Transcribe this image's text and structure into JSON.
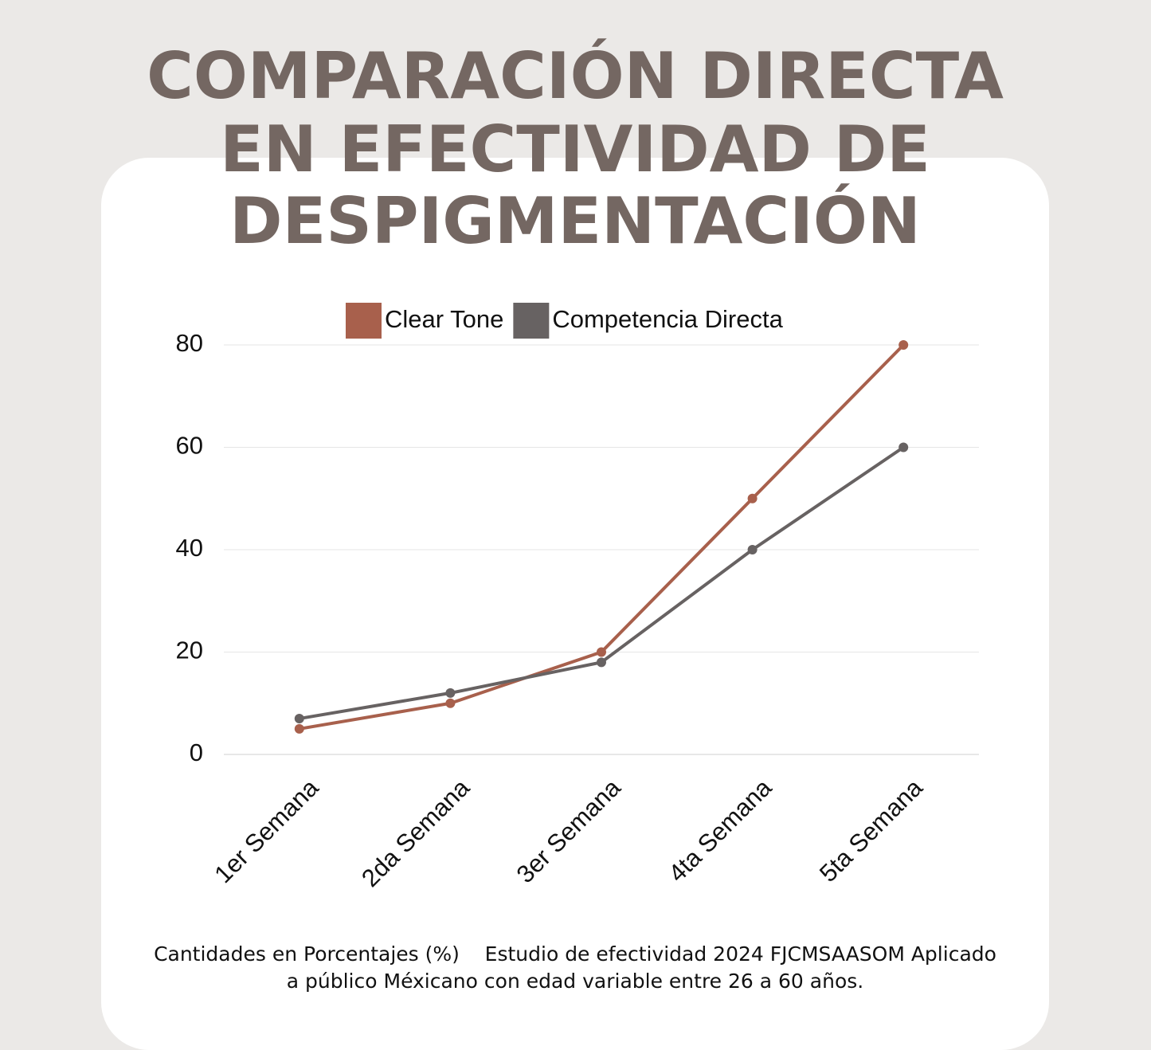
{
  "chart_data": {
    "type": "line",
    "title": [
      "COMPARACIÓN DIRECTA",
      "EN EFECTIVIDAD DE",
      "DESPIGMENTACIÓN"
    ],
    "categories": [
      "1er Semana",
      "2da Semana",
      "3er Semana",
      "4ta Semana",
      "5ta Semana"
    ],
    "series": [
      {
        "name": "Clear Tone",
        "color": "#a8604c",
        "values": [
          5,
          10,
          20,
          50,
          80
        ]
      },
      {
        "name": "Competencia Directa",
        "color": "#676262",
        "values": [
          7,
          12,
          18,
          40,
          60
        ]
      }
    ],
    "ylim": [
      0,
      80
    ],
    "yticks": [
      0,
      20,
      40,
      60,
      80
    ],
    "grid": true,
    "legend": "top",
    "note": [
      "Cantidades en Porcentajes (%)    Estudio de efectividad 2024 FJCMSAASOM Aplicado",
      "a público Méxicano con edad variable entre 26 a 60 años."
    ]
  }
}
